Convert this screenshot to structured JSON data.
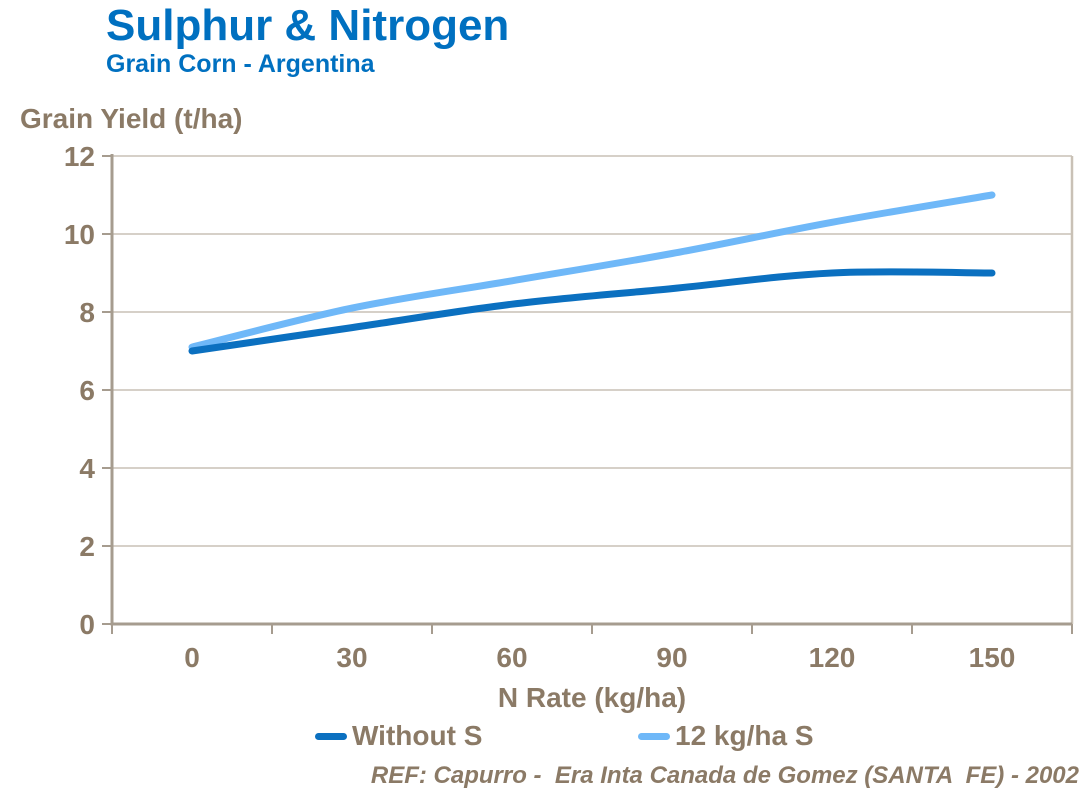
{
  "header": {
    "title": "Sulphur & Nitrogen",
    "subtitle": "Grain Corn - Argentina"
  },
  "chart_data": {
    "type": "line",
    "title": "Sulphur & Nitrogen",
    "subtitle": "Grain Corn - Argentina",
    "ylabel": "Grain Yield (t/ha)",
    "xlabel": "N Rate (kg/ha)",
    "categories": [
      "0",
      "30",
      "60",
      "90",
      "120",
      "150"
    ],
    "series": [
      {
        "name": "Without S",
        "color": "#0B70C0",
        "values": [
          7.0,
          7.6,
          8.2,
          8.6,
          9.0,
          9.0
        ]
      },
      {
        "name": "12 kg/ha S",
        "color": "#6FB8F8",
        "values": [
          7.1,
          8.1,
          8.8,
          9.5,
          10.3,
          11.0
        ]
      }
    ],
    "ylim": [
      0,
      12
    ],
    "yticks": [
      0,
      2,
      4,
      6,
      8,
      10,
      12
    ],
    "grid": "horizontal",
    "line_style": "smoothed-no-markers",
    "legend_position": "bottom"
  },
  "footer": {
    "reference": "REF: Capurro -  Era Inta Canada de Gomez (SANTA  FE) - 2002"
  },
  "colors": {
    "title_blue": "#0070C0",
    "chart_text_brown": "#8B7A66",
    "axis_line": "#A69C8F",
    "gridline": "#C9C1B6",
    "series_dark_blue": "#0B70C0",
    "series_light_blue": "#6FB8F8",
    "background": "#FFFFFF"
  }
}
